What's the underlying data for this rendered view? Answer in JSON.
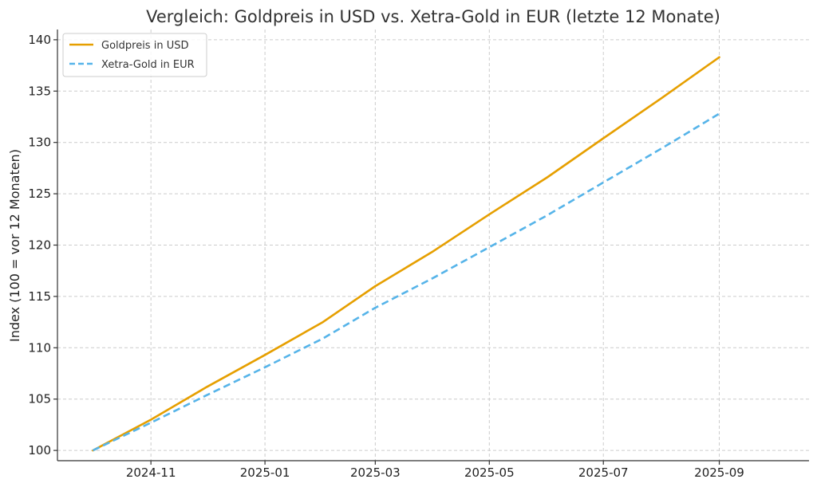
{
  "chart_data": {
    "type": "line",
    "title": "Vergleich: Goldpreis in USD vs. Xetra-Gold in EUR (letzte 12 Monate)",
    "xlabel": "",
    "ylabel": "Index (100 = vor 12 Monaten)",
    "x": [
      "2024-10-01",
      "2024-11-01",
      "2024-12-01",
      "2025-01-01",
      "2025-02-01",
      "2025-03-01",
      "2025-04-01",
      "2025-05-01",
      "2025-06-01",
      "2025-07-01",
      "2025-08-01",
      "2025-09-01"
    ],
    "x_ticks": [
      "2024-11",
      "2025-01",
      "2025-03",
      "2025-05",
      "2025-07",
      "2025-09"
    ],
    "ylim": [
      99,
      141
    ],
    "y_ticks": [
      100,
      105,
      110,
      115,
      120,
      125,
      130,
      135,
      140
    ],
    "grid": true,
    "legend_position": "top-left",
    "series": [
      {
        "name": "Goldpreis in USD",
        "color": "#E69F00",
        "style": "solid",
        "values": [
          100,
          103.0,
          106.2,
          109.3,
          112.5,
          116.0,
          119.4,
          123.0,
          126.6,
          130.4,
          134.3,
          138.3
        ]
      },
      {
        "name": "Xetra-Gold in EUR",
        "color": "#56B4E9",
        "style": "dashed",
        "values": [
          100,
          102.7,
          105.4,
          108.1,
          110.9,
          113.9,
          116.8,
          119.8,
          122.9,
          126.1,
          129.4,
          132.8
        ]
      }
    ]
  }
}
